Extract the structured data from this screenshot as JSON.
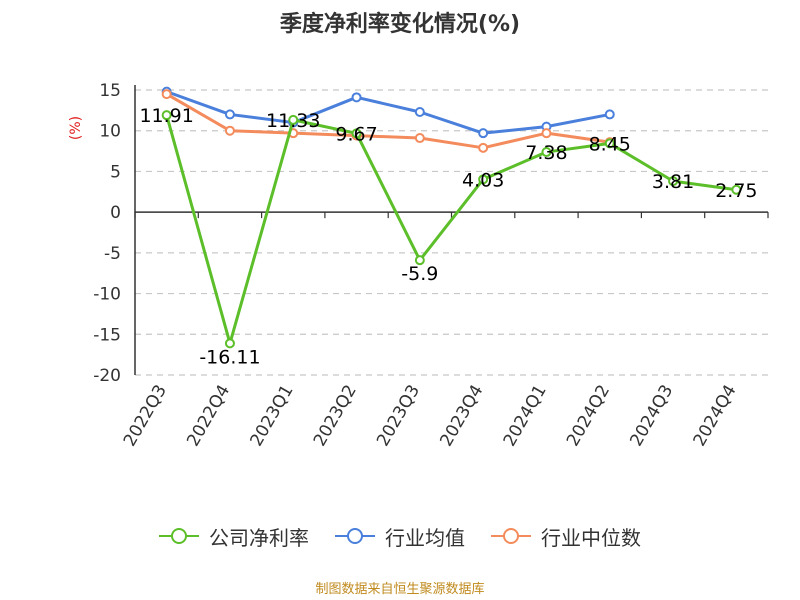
{
  "title": "季度净利率变化情况(%)",
  "source_note": "制图数据来自恒生聚源数据库",
  "colors": {
    "company": "#5cbf2a",
    "industry_avg": "#4a80dc",
    "industry_median": "#f48b5c",
    "ylabel": "#e02020",
    "source": "#c08a1e"
  },
  "legend": {
    "company": "公司净利率",
    "industry_avg": "行业均值",
    "industry_median": "行业中位数"
  },
  "chart_data": {
    "type": "line",
    "title": "季度净利率变化情况(%)",
    "xlabel": "",
    "ylabel": "(%)",
    "ylim": [
      -20,
      15
    ],
    "yticks": [
      15,
      10,
      5,
      0,
      -5,
      -10,
      -15,
      -20
    ],
    "categories": [
      "2022Q3",
      "2022Q4",
      "2023Q1",
      "2023Q2",
      "2023Q3",
      "2023Q4",
      "2024Q1",
      "2024Q2",
      "2024Q3",
      "2024Q4"
    ],
    "grid": true,
    "legend_position": "bottom",
    "series": [
      {
        "name": "公司净利率",
        "color": "#5cbf2a",
        "values": [
          11.91,
          -16.11,
          11.33,
          9.67,
          -5.9,
          4.03,
          7.38,
          8.45,
          3.81,
          2.75
        ],
        "labels": [
          "11.91",
          "-16.11",
          "11.33",
          "9.67",
          "-5.9",
          "4.03",
          "7.38",
          "8.45",
          "3.81",
          "2.75"
        ]
      },
      {
        "name": "行业均值",
        "color": "#4a80dc",
        "values": [
          14.8,
          12.0,
          11.0,
          14.1,
          12.3,
          9.7,
          10.5,
          12.0,
          null,
          null
        ]
      },
      {
        "name": "行业中位数",
        "color": "#f48b5c",
        "values": [
          14.5,
          10.0,
          9.7,
          9.4,
          9.1,
          7.9,
          9.7,
          8.6,
          null,
          null
        ]
      }
    ]
  }
}
